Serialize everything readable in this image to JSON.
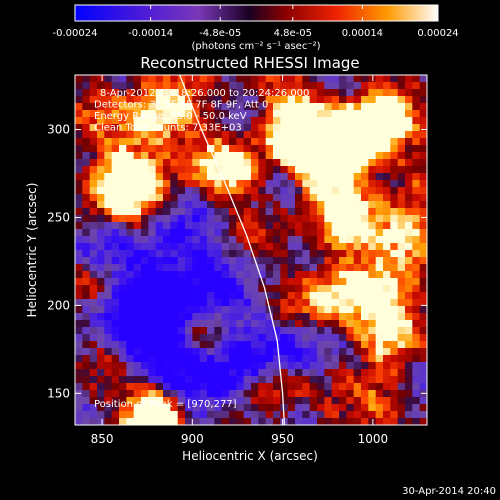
{
  "chart_data": {
    "type": "heatmap",
    "title": "Reconstructed RHESSI Image",
    "xlabel": "Heliocentric X (arcsec)",
    "ylabel": "Heliocentric Y (arcsec)",
    "xlim": [
      835,
      1030
    ],
    "ylim": [
      132,
      331
    ],
    "x_ticks": [
      850,
      900,
      950,
      1000
    ],
    "y_ticks": [
      150,
      200,
      250,
      300
    ],
    "x_tick_labels": [
      "850",
      "900",
      "950",
      "1000"
    ],
    "y_tick_labels": [
      "150",
      "200",
      "250",
      "300"
    ],
    "colorbar": {
      "range": [
        -0.00024,
        0.00024
      ],
      "ticks": [
        -0.00024,
        -0.00014,
        -4.8e-05,
        4.8e-05,
        0.00014,
        0.00024
      ],
      "tick_labels": [
        "-0.00024",
        "-0.00014",
        "-4.8e-05",
        "4.8e-05",
        "0.00014",
        "0.00024"
      ],
      "unit_label": "(photons cm⁻² s⁻¹ asec⁻²)"
    },
    "annotations": [
      "8-Apr-2012 20:18:26.000 to 20:24:26.000",
      "Detectors: 3F 5F 6F 7F 8F 9F, Att 0",
      "Energy Range: 25.0 - 50.0 keV",
      "Clean      Total counts: 7.33E+03"
    ],
    "peak_label": "Position of Peak = [970,277]",
    "peak_position": [
      970,
      277
    ],
    "limb_curve": [
      [
        893,
        331
      ],
      [
        905,
        300
      ],
      [
        918,
        270
      ],
      [
        930,
        240
      ],
      [
        940,
        210
      ],
      [
        947,
        180
      ],
      [
        950,
        150
      ],
      [
        951,
        132
      ]
    ],
    "grid_nx": 48,
    "grid_ny": 50,
    "hot_spots": [
      [
        975,
        285,
        2.9,
        14
      ],
      [
        1000,
        300,
        2.4,
        13
      ],
      [
        955,
        305,
        2.0,
        12
      ],
      [
        880,
        140,
        3.1,
        11
      ],
      [
        1018,
        240,
        2.0,
        12
      ],
      [
        865,
        265,
        2.2,
        16
      ],
      [
        880,
        305,
        1.7,
        14
      ],
      [
        920,
        275,
        1.4,
        12
      ],
      [
        1005,
        190,
        1.8,
        16
      ],
      [
        975,
        205,
        1.6,
        13
      ],
      [
        945,
        155,
        1.6,
        10
      ],
      [
        1005,
        145,
        1.4,
        12
      ],
      [
        905,
        185,
        1.4,
        11
      ],
      [
        985,
        245,
        1.5,
        12
      ],
      [
        850,
        215,
        1.0,
        10
      ]
    ],
    "cold_zones": [
      [
        880,
        215,
        -2.0,
        28
      ],
      [
        910,
        160,
        -1.6,
        22
      ],
      [
        960,
        175,
        -1.2,
        18
      ],
      [
        1025,
        160,
        -1.2,
        14
      ],
      [
        885,
        185,
        -1.0,
        16
      ]
    ]
  },
  "footer": {
    "timestamp": "30-Apr-2014 20:40"
  }
}
